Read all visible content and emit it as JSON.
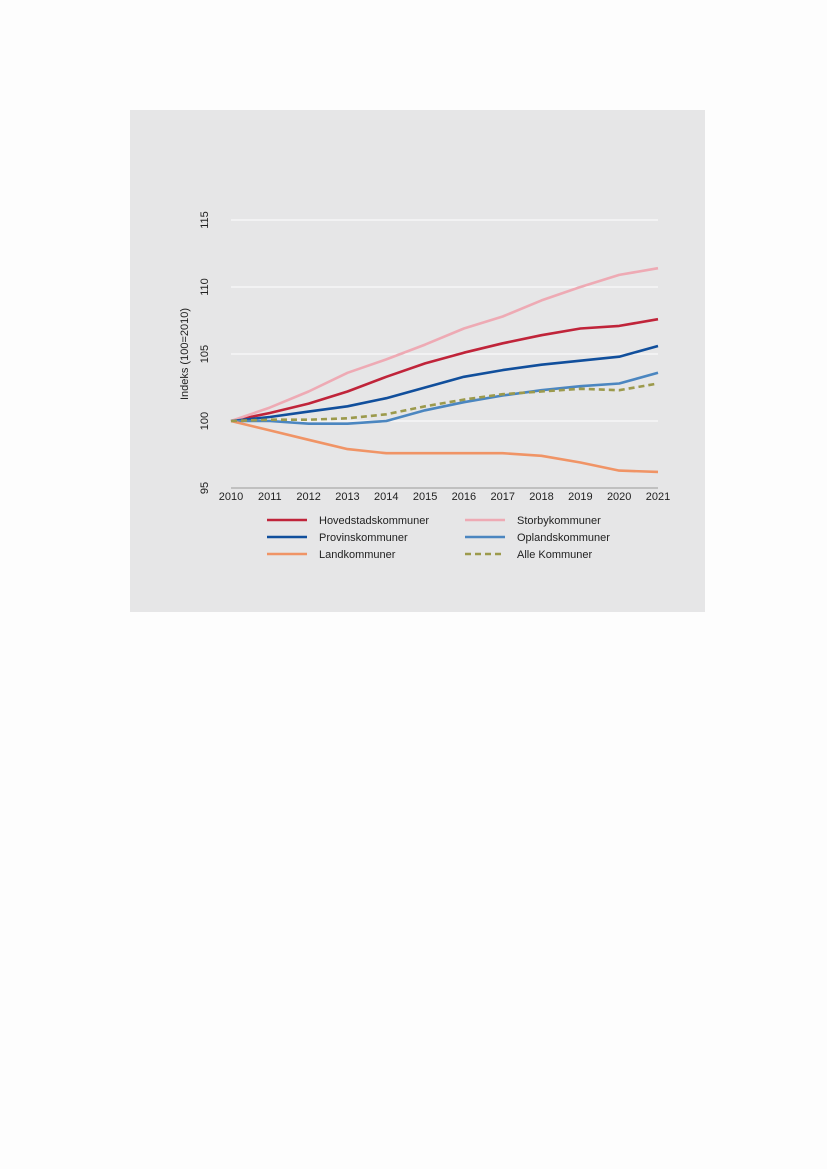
{
  "chart_data": {
    "type": "line",
    "xlabel": "",
    "ylabel": "Indeks (100=2010)",
    "x": [
      2010,
      2011,
      2012,
      2013,
      2014,
      2015,
      2016,
      2017,
      2018,
      2019,
      2020,
      2021
    ],
    "x_tick_labels": [
      "2010",
      "2011",
      "2012",
      "2013",
      "2014",
      "2015",
      "2016",
      "2017",
      "2018",
      "2019",
      "2020",
      "2021"
    ],
    "ylim": [
      95,
      115
    ],
    "y_ticks": [
      95,
      100,
      105,
      110,
      115
    ],
    "y_tick_labels": [
      "95",
      "100",
      "105",
      "110",
      "115"
    ],
    "grid": "horizontal",
    "legend_position": "bottom",
    "series": [
      {
        "name": "Hovedstadskommuner",
        "color": "#c0243a",
        "dash": false,
        "values": [
          100,
          100.6,
          101.3,
          102.2,
          103.3,
          104.3,
          105.1,
          105.8,
          106.4,
          106.9,
          107.1,
          107.6
        ]
      },
      {
        "name": "Storbykommuner",
        "color": "#eeaab4",
        "dash": false,
        "values": [
          100,
          101.0,
          102.2,
          103.6,
          104.6,
          105.7,
          106.9,
          107.8,
          109.0,
          110.0,
          110.9,
          111.4
        ]
      },
      {
        "name": "Provinskommuner",
        "color": "#114f9c",
        "dash": false,
        "values": [
          100,
          100.3,
          100.7,
          101.1,
          101.7,
          102.5,
          103.3,
          103.8,
          104.2,
          104.5,
          104.8,
          105.6
        ]
      },
      {
        "name": "Oplandskommuner",
        "color": "#4b86c0",
        "dash": false,
        "values": [
          100,
          100.0,
          99.8,
          99.8,
          100.0,
          100.8,
          101.4,
          101.9,
          102.3,
          102.6,
          102.8,
          103.6
        ]
      },
      {
        "name": "Landkommuner",
        "color": "#f09466",
        "dash": false,
        "values": [
          100,
          99.3,
          98.6,
          97.9,
          97.6,
          97.6,
          97.6,
          97.6,
          97.4,
          96.9,
          96.3,
          96.2
        ]
      },
      {
        "name": "Alle Kommuner",
        "color": "#9c9a4c",
        "dash": true,
        "values": [
          100,
          100.1,
          100.1,
          100.2,
          100.5,
          101.1,
          101.6,
          102.0,
          102.2,
          102.4,
          102.3,
          102.8
        ]
      }
    ]
  }
}
